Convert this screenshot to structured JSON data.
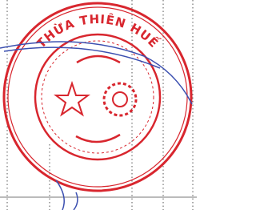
{
  "stamp": {
    "top_text": "THỪA THIÊN HUẾ"
  }
}
